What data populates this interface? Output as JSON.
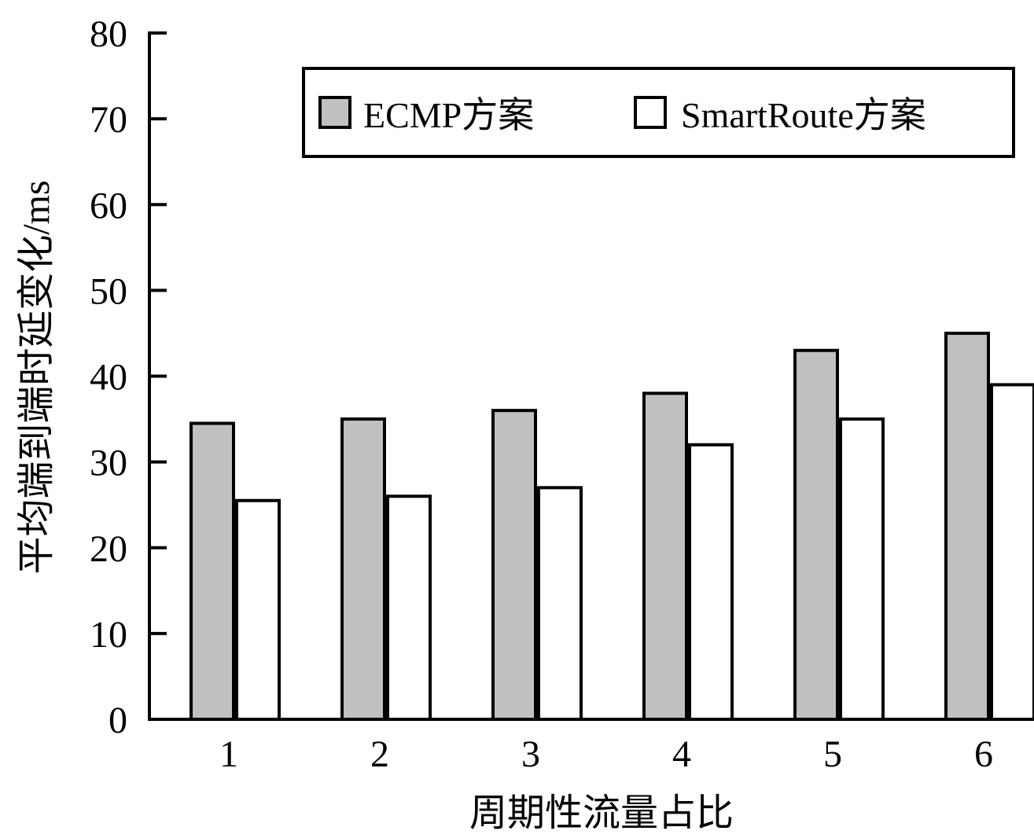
{
  "chart_data": {
    "type": "bar",
    "xlabel": "周期性流量占比",
    "ylabel": "平均端到端时延变化/ms",
    "categories": [
      "1",
      "2",
      "3",
      "4",
      "5",
      "6"
    ],
    "series": [
      {
        "name": "ECMP方案",
        "values": [
          34.5,
          35,
          36,
          38,
          43,
          45
        ],
        "color": "#c0c0c0"
      },
      {
        "name": "SmartRoute方案",
        "values": [
          25.5,
          26,
          27,
          32,
          35,
          39
        ],
        "color": "#ffffff"
      }
    ],
    "ylim": [
      0,
      80
    ],
    "yticks": [
      "0",
      "10",
      "20",
      "30",
      "40",
      "50",
      "60",
      "70",
      "80"
    ],
    "grid": false,
    "legend_position": "top-right"
  }
}
